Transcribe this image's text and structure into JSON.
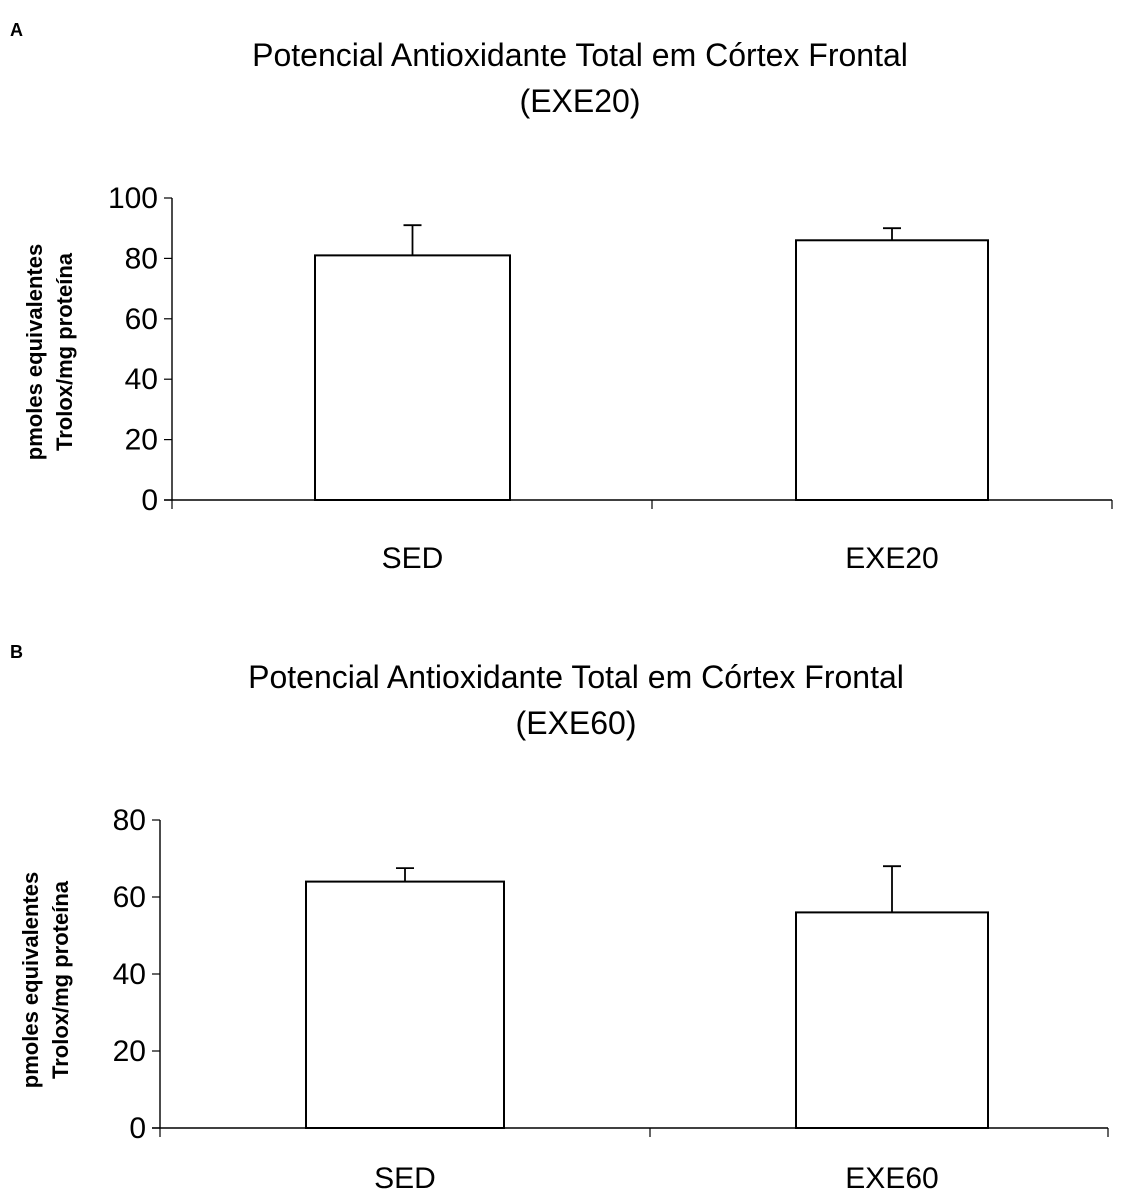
{
  "chart_data": [
    {
      "panel": "A",
      "type": "bar",
      "title_lines": [
        "Potencial Antioxidante Total em Córtex Frontal",
        "(EXE20)"
      ],
      "ylabel_lines": [
        "pmoles equivalentes",
        "Trolox/mg proteína"
      ],
      "xlabel": "",
      "categories": [
        "SED",
        "EXE20"
      ],
      "values": [
        81,
        86
      ],
      "errors": [
        10,
        4
      ],
      "ylim": [
        0,
        100
      ],
      "yticks": [
        0,
        20,
        40,
        60,
        80,
        100
      ],
      "grid": false,
      "legend": "none"
    },
    {
      "panel": "B",
      "type": "bar",
      "title_lines": [
        "Potencial Antioxidante Total em Córtex Frontal",
        "(EXE60)"
      ],
      "ylabel_lines": [
        "pmoles equivalentes",
        "Trolox/mg proteína"
      ],
      "xlabel": "",
      "categories": [
        "SED",
        "EXE60"
      ],
      "values": [
        64,
        56
      ],
      "errors": [
        3.5,
        12
      ],
      "ylim": [
        0,
        80
      ],
      "yticks": [
        0,
        20,
        40,
        60,
        80
      ],
      "grid": false,
      "legend": "none"
    }
  ],
  "colors": {
    "bar_fill": "#ffffff",
    "stroke": "#000000"
  }
}
